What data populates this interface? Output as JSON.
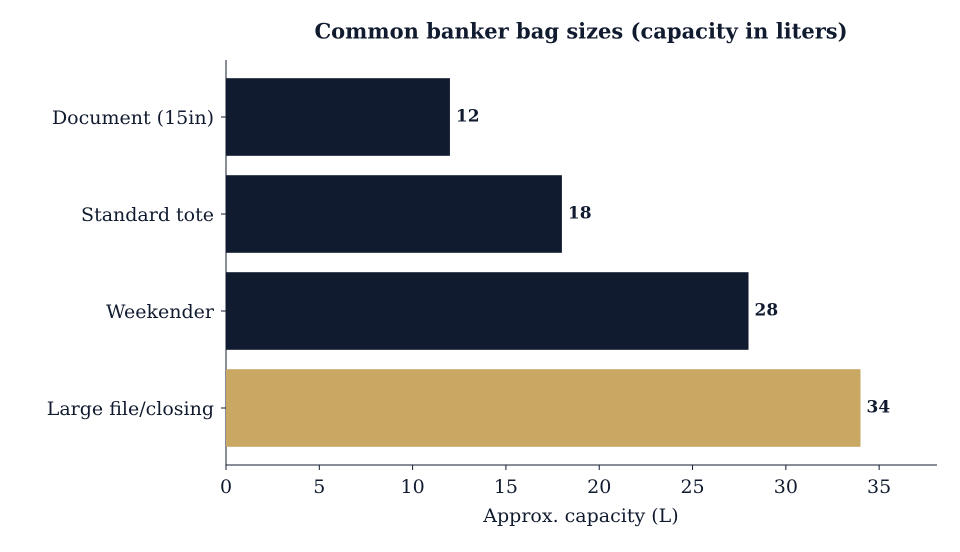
{
  "chart_data": {
    "type": "bar",
    "orientation": "horizontal",
    "title": "Common banker bag sizes (capacity in liters)",
    "x_label": "Approx. capacity (L)",
    "categories": [
      "Document (15in)",
      "Standard tote",
      "Weekender",
      "Large file/closing"
    ],
    "values": [
      12,
      18,
      28,
      34
    ],
    "colors": [
      "#111b2f",
      "#111b2f",
      "#111b2f",
      "#c9a863"
    ],
    "xlim": [
      0,
      38.1
    ],
    "xticks": [
      0,
      5,
      10,
      15,
      20,
      25,
      30,
      35
    ],
    "grid": false
  }
}
